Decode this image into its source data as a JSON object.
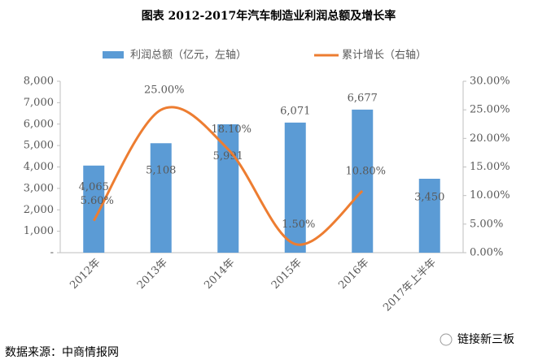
{
  "chart_data": {
    "type": "bar_line",
    "title": "图表  2012-2017年汽车制造业利润总额及增长率",
    "categories": [
      "2012年",
      "2013年",
      "2014年",
      "2015年",
      "2016年",
      "2017年上半年"
    ],
    "series": [
      {
        "name": "利润总额（亿元，左轴）",
        "type": "bar",
        "color": "#5b9bd5",
        "values": [
          4065,
          5108,
          5991,
          6071,
          6677,
          3450
        ],
        "value_labels": [
          "4,065",
          "5,108",
          "5,991",
          "6,071",
          "6,677",
          "3,450"
        ]
      },
      {
        "name": "累计增长（右轴）",
        "type": "line",
        "axis": "y2",
        "color": "#ed7d31",
        "values": [
          5.6,
          25.0,
          18.1,
          1.5,
          10.8,
          null
        ],
        "value_labels": [
          "5.60%",
          "25.00%",
          "18.10%",
          "1.50%",
          "10.80%",
          null
        ]
      }
    ],
    "ylim": [
      0,
      8000
    ],
    "yticks": [
      {
        "value": 0,
        "label": "-"
      },
      {
        "value": 1000,
        "label": "1,000"
      },
      {
        "value": 2000,
        "label": "2,000"
      },
      {
        "value": 3000,
        "label": "3,000"
      },
      {
        "value": 4000,
        "label": "4,000"
      },
      {
        "value": 5000,
        "label": "5,000"
      },
      {
        "value": 6000,
        "label": "6,000"
      },
      {
        "value": 7000,
        "label": "7,000"
      },
      {
        "value": 8000,
        "label": "8,000"
      }
    ],
    "y2lim": [
      0,
      30
    ],
    "y2ticks": [
      {
        "value": 0,
        "label": "0.00%"
      },
      {
        "value": 5,
        "label": "5.00%"
      },
      {
        "value": 10,
        "label": "10.00%"
      },
      {
        "value": 15,
        "label": "15.00%"
      },
      {
        "value": 20,
        "label": "20.00%"
      },
      {
        "value": 25,
        "label": "25.00%"
      },
      {
        "value": 30,
        "label": "30.00%"
      }
    ],
    "source": "数据来源：中商情报网",
    "watermark": "链接新三板"
  }
}
